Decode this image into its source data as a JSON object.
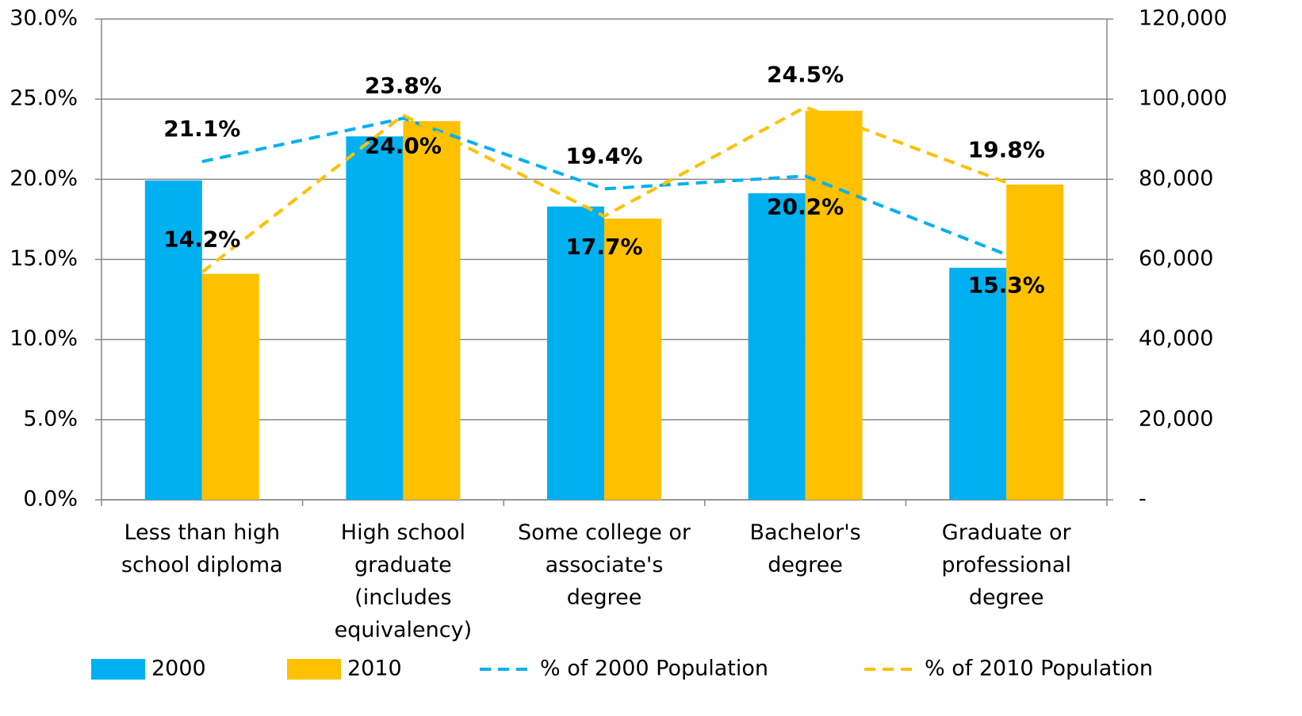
{
  "chart_data": {
    "type": "bar",
    "categories": [
      "Less than high\nschool diploma",
      "High school\ngraduate\n(includes\nequivalency)",
      "Some college or\nassociate's\ndegree",
      "Bachelor's\ndegree",
      "Graduate or\nprofessional\ndegree"
    ],
    "series": [
      {
        "name": "2000",
        "type": "bar",
        "axis": "y2",
        "color": "#00b0f0",
        "values": [
          79700,
          90700,
          73200,
          76500,
          57900
        ]
      },
      {
        "name": "2010",
        "type": "bar",
        "axis": "y2",
        "color": "#ffc000",
        "values": [
          56400,
          94500,
          70200,
          97100,
          78700
        ]
      },
      {
        "name": "% of 2000 Population",
        "type": "line",
        "color": "#00b0f0",
        "values": [
          21.1,
          23.8,
          19.4,
          20.2,
          15.3
        ],
        "value_labels": [
          "21.1%",
          "23.8%",
          "19.4%",
          "20.2%",
          "15.3%"
        ]
      },
      {
        "name": "% of 2010 Population",
        "type": "line",
        "color": "#ffc000",
        "values": [
          14.2,
          24.0,
          17.7,
          24.5,
          19.8
        ],
        "value_labels": [
          "14.2%",
          "24.0%",
          "17.7%",
          "24.5%",
          "19.8%"
        ]
      }
    ],
    "ylim": [
      0,
      30
    ],
    "yticks": [
      {
        "value": 0,
        "label": "0.0%"
      },
      {
        "value": 5,
        "label": "5.0%"
      },
      {
        "value": 10,
        "label": "10.0%"
      },
      {
        "value": 15,
        "label": "15.0%"
      },
      {
        "value": 20,
        "label": "20.0%"
      },
      {
        "value": 25,
        "label": "25.0%"
      },
      {
        "value": 30,
        "label": "30.0%"
      }
    ],
    "y2lim": [
      0,
      120000
    ],
    "y2ticks": [
      {
        "value": 0,
        "label": "-"
      },
      {
        "value": 20000,
        "label": "20,000"
      },
      {
        "value": 40000,
        "label": "40,000"
      },
      {
        "value": 60000,
        "label": "60,000"
      },
      {
        "value": 80000,
        "label": "80,000"
      },
      {
        "value": 100000,
        "label": "100,000"
      },
      {
        "value": 120000,
        "label": "120,000"
      }
    ],
    "grid": true,
    "legend": "bottom"
  }
}
